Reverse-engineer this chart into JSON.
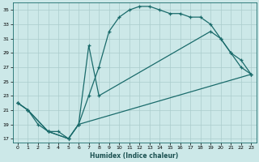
{
  "xlabel": "Humidex (Indice chaleur)",
  "bg_color": "#cce8e8",
  "grid_color": "#aacccc",
  "line_color": "#1a6b6b",
  "xlim": [
    -0.5,
    23.5
  ],
  "ylim": [
    16.5,
    36
  ],
  "yticks": [
    17,
    19,
    21,
    23,
    25,
    27,
    29,
    31,
    33,
    35
  ],
  "xticks": [
    0,
    1,
    2,
    3,
    4,
    5,
    6,
    7,
    8,
    9,
    10,
    11,
    12,
    13,
    14,
    15,
    16,
    17,
    18,
    19,
    20,
    21,
    22,
    23
  ],
  "line1_x": [
    0,
    1,
    2,
    3,
    4,
    5,
    6,
    7,
    8,
    9,
    10,
    11,
    12,
    13,
    14,
    15,
    16,
    17,
    18,
    19,
    20,
    21,
    22,
    23
  ],
  "line1_y": [
    22,
    21,
    19,
    18,
    18,
    17,
    19,
    23,
    27,
    32,
    34,
    35,
    35.5,
    35.5,
    35,
    34.5,
    34.5,
    34,
    34,
    33,
    31,
    29,
    27,
    26
  ],
  "line2_x": [
    0,
    1,
    3,
    5,
    6,
    23
  ],
  "line2_y": [
    22,
    21,
    18,
    17,
    19,
    26
  ],
  "line3_x": [
    0,
    1,
    3,
    5,
    6,
    7,
    8,
    19,
    20,
    21,
    22,
    23
  ],
  "line3_y": [
    22,
    21,
    18,
    17,
    19,
    30,
    23,
    32,
    31,
    29,
    28,
    26
  ]
}
